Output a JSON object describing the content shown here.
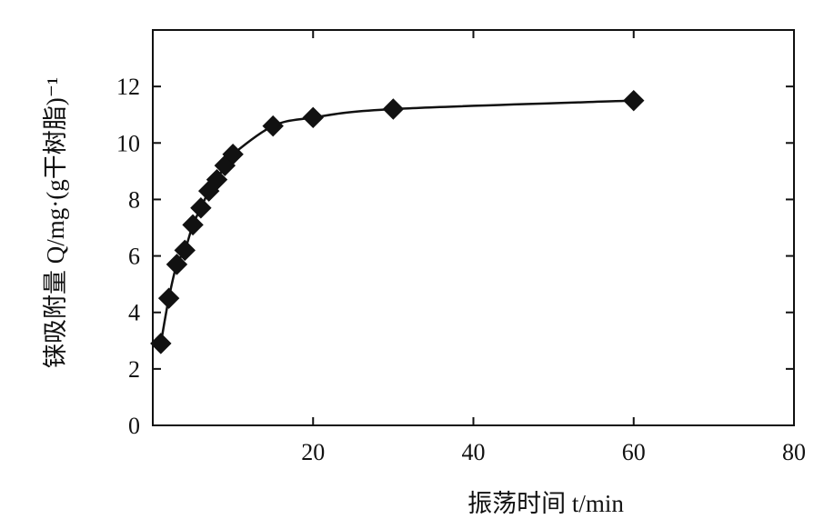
{
  "chart_data": {
    "type": "line",
    "xlabel": "振荡时间 t/min",
    "ylabel": "铼吸附量 Q/mg·(g干树脂)⁻¹",
    "xlim": [
      0,
      80
    ],
    "ylim": [
      0,
      14
    ],
    "x_ticks": [
      20,
      40,
      60,
      80
    ],
    "y_ticks": [
      0,
      2,
      4,
      6,
      8,
      10,
      12
    ],
    "x_tick_labels": [
      "20",
      "40",
      "60",
      "80"
    ],
    "y_tick_labels": [
      "0",
      "2",
      "4",
      "6",
      "8",
      "10",
      "12"
    ],
    "grid": false,
    "legend": "none",
    "marker": "diamond",
    "color": "#111111",
    "series": [
      {
        "x": [
          1,
          2,
          3,
          4,
          5,
          6,
          7,
          8,
          9,
          10,
          15,
          20,
          30,
          60
        ],
        "y": [
          2.9,
          4.5,
          5.7,
          6.2,
          7.1,
          7.7,
          8.3,
          8.7,
          9.2,
          9.6,
          10.6,
          10.9,
          11.2,
          11.5
        ]
      }
    ]
  }
}
